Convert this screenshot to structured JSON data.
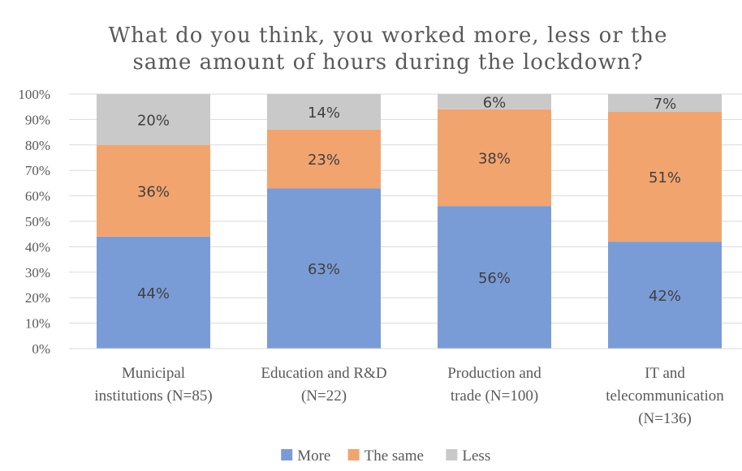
{
  "chart_data": {
    "type": "bar",
    "stacked": true,
    "title": [
      "What do you think, you worked more, less or the",
      "same amount of hours during the lockdown?"
    ],
    "xlabel": "",
    "ylabel": "",
    "ylim": [
      0,
      100
    ],
    "yticks": [
      "0%",
      "10%",
      "20%",
      "30%",
      "40%",
      "50%",
      "60%",
      "70%",
      "80%",
      "90%",
      "100%"
    ],
    "categories": [
      [
        "Municipal",
        "institutions (N=85)"
      ],
      [
        "Education and R&D",
        "(N=22)"
      ],
      [
        "Production and",
        "trade (N=100)"
      ],
      [
        "IT and",
        "telecommunication",
        "(N=136)"
      ]
    ],
    "series": [
      {
        "name": "More",
        "color": "#7a9cd6",
        "values": [
          44,
          63,
          56,
          42
        ],
        "labels": [
          "44%",
          "63%",
          "56%",
          "42%"
        ]
      },
      {
        "name": "The same",
        "color": "#f2a46f",
        "values": [
          36,
          23,
          38,
          51
        ],
        "labels": [
          "36%",
          "23%",
          "38%",
          "51%"
        ]
      },
      {
        "name": "Less",
        "color": "#c9c9c9",
        "values": [
          20,
          14,
          6,
          7
        ],
        "labels": [
          "20%",
          "14%",
          "6%",
          "7%"
        ]
      }
    ],
    "grid": true,
    "legend": "bottom"
  }
}
